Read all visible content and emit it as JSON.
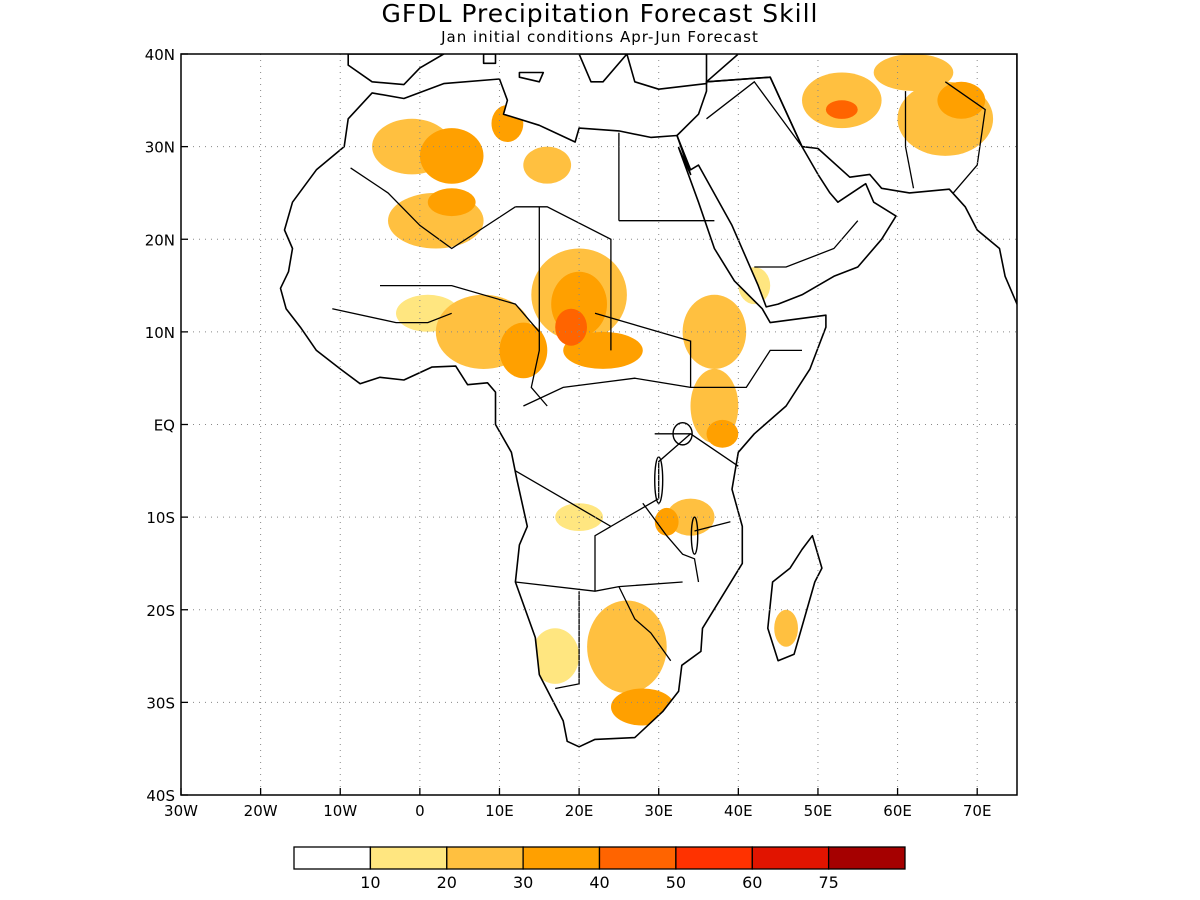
{
  "title": "GFDL Precipitation Forecast Skill",
  "subtitle": "Jan initial conditions  Apr-Jun Forecast",
  "map": {
    "lon_range": [
      -30,
      75
    ],
    "lat_range": [
      -40,
      40
    ],
    "x_ticks": [
      {
        "value": -30,
        "label": "30W"
      },
      {
        "value": -20,
        "label": "20W"
      },
      {
        "value": -10,
        "label": "10W"
      },
      {
        "value": 0,
        "label": "0"
      },
      {
        "value": 10,
        "label": "10E"
      },
      {
        "value": 20,
        "label": "20E"
      },
      {
        "value": 30,
        "label": "30E"
      },
      {
        "value": 40,
        "label": "40E"
      },
      {
        "value": 50,
        "label": "50E"
      },
      {
        "value": 60,
        "label": "60E"
      },
      {
        "value": 70,
        "label": "70E"
      }
    ],
    "y_ticks": [
      {
        "value": 40,
        "label": "40N"
      },
      {
        "value": 30,
        "label": "30N"
      },
      {
        "value": 20,
        "label": "20N"
      },
      {
        "value": 10,
        "label": "10N"
      },
      {
        "value": 0,
        "label": "EQ"
      },
      {
        "value": -10,
        "label": "10S"
      },
      {
        "value": -20,
        "label": "20S"
      },
      {
        "value": -30,
        "label": "30S"
      },
      {
        "value": -40,
        "label": "40S"
      }
    ],
    "grid": true
  },
  "colorbar": {
    "colors": [
      "#ffffff",
      "#ffe680",
      "#ffc040",
      "#ffa000",
      "#ff6400",
      "#ff3200",
      "#e11400",
      "#a50000"
    ],
    "labels": [
      "10",
      "20",
      "30",
      "40",
      "50",
      "60",
      "75"
    ]
  },
  "regions": [
    {
      "lon": -1,
      "lat": 30,
      "rx": 5,
      "ry": 3,
      "level": 2
    },
    {
      "lon": 4,
      "lat": 29,
      "rx": 4,
      "ry": 3,
      "level": 3
    },
    {
      "lon": 11,
      "lat": 32.5,
      "rx": 2,
      "ry": 2,
      "level": 3
    },
    {
      "lon": 16,
      "lat": 28,
      "rx": 3,
      "ry": 2,
      "level": 2
    },
    {
      "lon": 2,
      "lat": 22,
      "rx": 6,
      "ry": 3,
      "level": 2
    },
    {
      "lon": 4,
      "lat": 24,
      "rx": 3,
      "ry": 1.5,
      "level": 3
    },
    {
      "lon": 20,
      "lat": 14,
      "rx": 6,
      "ry": 5,
      "level": 2
    },
    {
      "lon": 20,
      "lat": 13,
      "rx": 3.5,
      "ry": 3.5,
      "level": 3
    },
    {
      "lon": 19,
      "lat": 10.5,
      "rx": 2,
      "ry": 2,
      "level": 4
    },
    {
      "lon": 8,
      "lat": 10,
      "rx": 6,
      "ry": 4,
      "level": 2
    },
    {
      "lon": 13,
      "lat": 8,
      "rx": 3,
      "ry": 3,
      "level": 3
    },
    {
      "lon": 23,
      "lat": 8,
      "rx": 5,
      "ry": 2,
      "level": 3
    },
    {
      "lon": 1,
      "lat": 12,
      "rx": 4,
      "ry": 2,
      "level": 1
    },
    {
      "lon": 37,
      "lat": 10,
      "rx": 4,
      "ry": 4,
      "level": 2
    },
    {
      "lon": 37,
      "lat": 2,
      "rx": 3,
      "ry": 4,
      "level": 2
    },
    {
      "lon": 38,
      "lat": -1,
      "rx": 2,
      "ry": 1.5,
      "level": 3
    },
    {
      "lon": 34,
      "lat": -10,
      "rx": 3,
      "ry": 2,
      "level": 2
    },
    {
      "lon": 31,
      "lat": -10.5,
      "rx": 1.5,
      "ry": 1.5,
      "level": 3
    },
    {
      "lon": 26,
      "lat": -24,
      "rx": 5,
      "ry": 5,
      "level": 2
    },
    {
      "lon": 28,
      "lat": -30.5,
      "rx": 4,
      "ry": 2,
      "level": 3
    },
    {
      "lon": 17,
      "lat": -25,
      "rx": 3,
      "ry": 3,
      "level": 1
    },
    {
      "lon": 20,
      "lat": -10,
      "rx": 3,
      "ry": 1.5,
      "level": 1
    },
    {
      "lon": 53,
      "lat": 35,
      "rx": 5,
      "ry": 3,
      "level": 2
    },
    {
      "lon": 53,
      "lat": 34,
      "rx": 2,
      "ry": 1,
      "level": 4
    },
    {
      "lon": 66,
      "lat": 33,
      "rx": 6,
      "ry": 4,
      "level": 2
    },
    {
      "lon": 68,
      "lat": 35,
      "rx": 3,
      "ry": 2,
      "level": 3
    },
    {
      "lon": 62,
      "lat": 38,
      "rx": 5,
      "ry": 2,
      "level": 2
    },
    {
      "lon": 46,
      "lat": -22,
      "rx": 1.5,
      "ry": 2,
      "level": 2
    },
    {
      "lon": 42,
      "lat": 15,
      "rx": 2,
      "ry": 2,
      "level": 1
    }
  ]
}
